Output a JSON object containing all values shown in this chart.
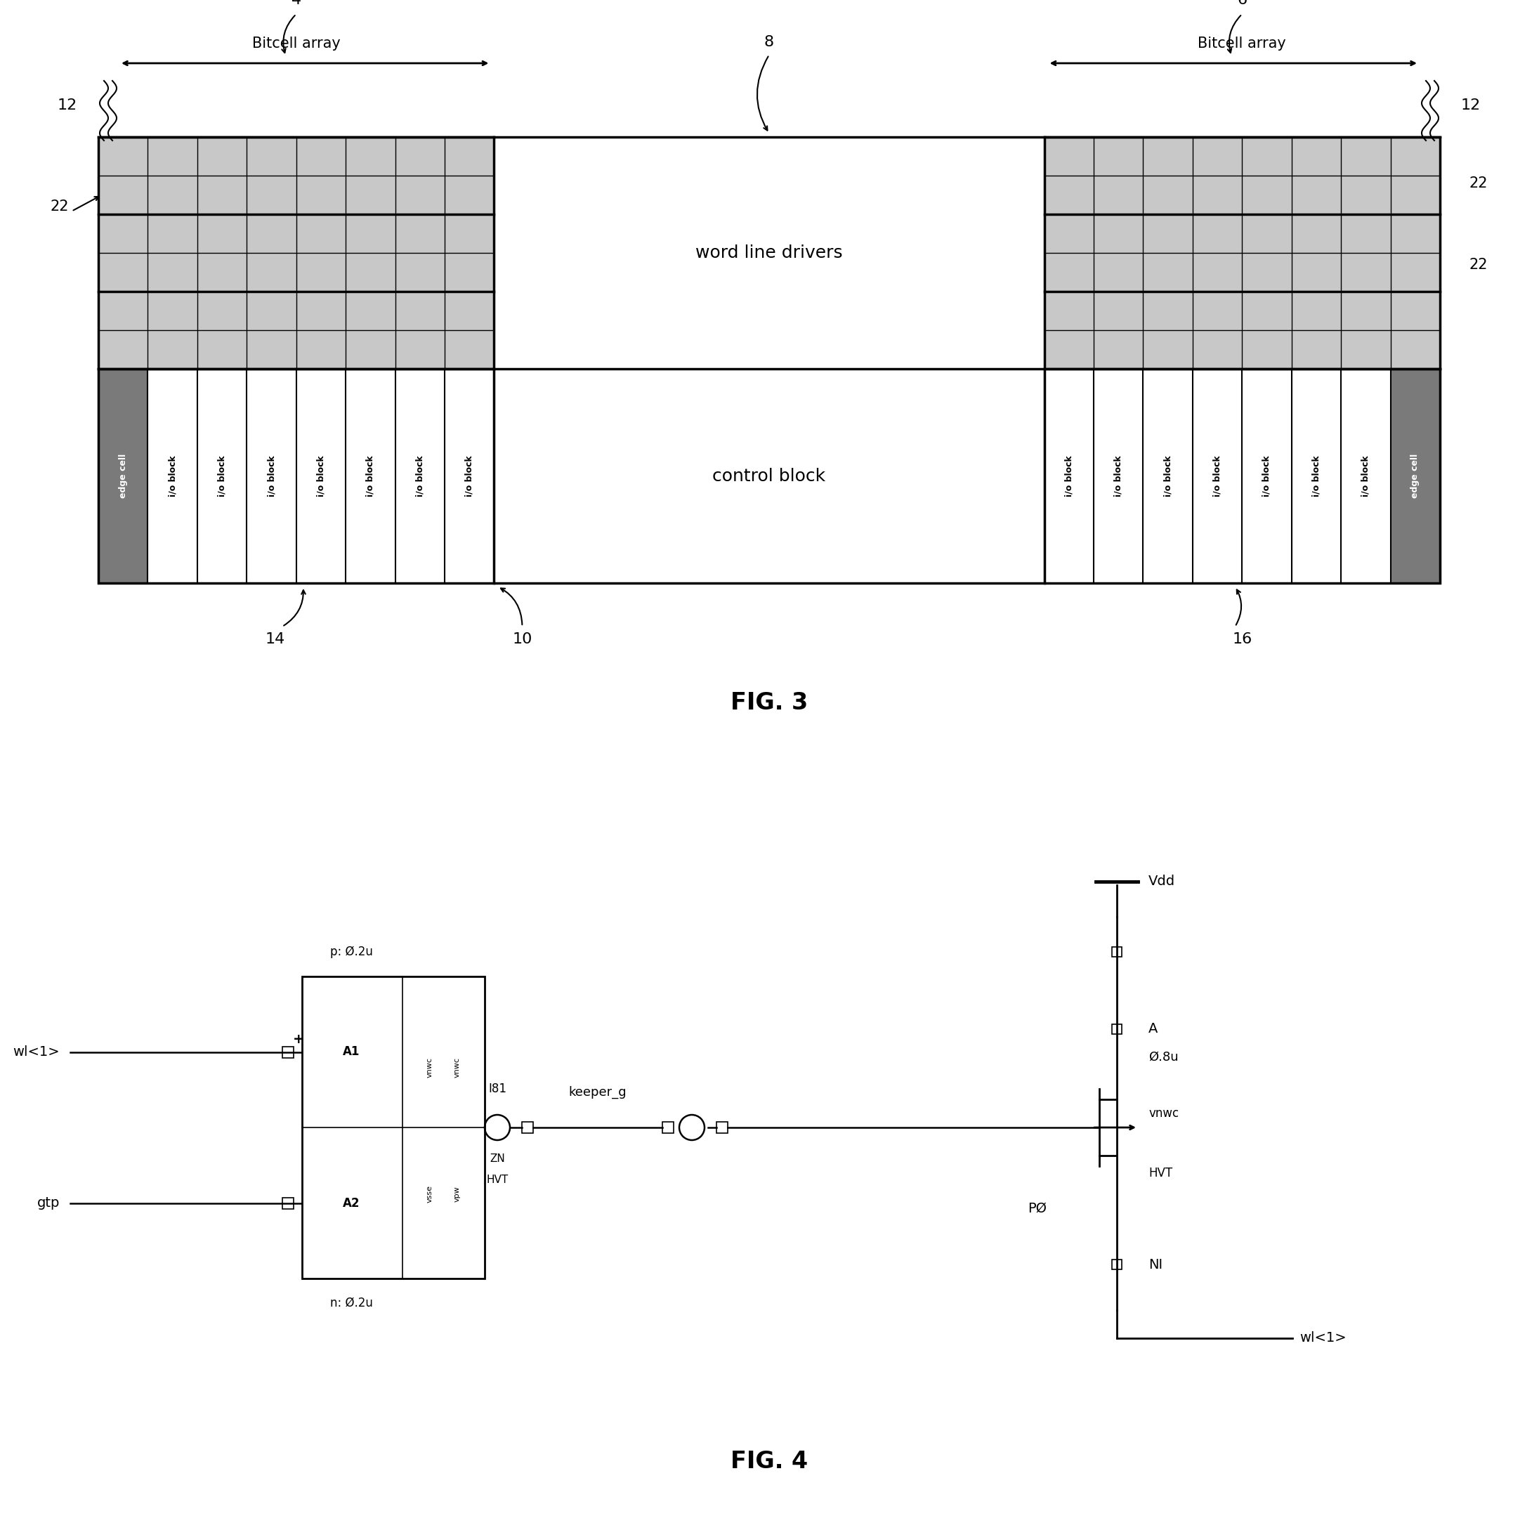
{
  "fig3": {
    "title": "FIG. 3",
    "word_line_drivers_text": "word line drivers",
    "control_block_text": "control block",
    "label_4": "4",
    "label_6": "6",
    "label_8": "8",
    "label_10": "10",
    "label_12": "12",
    "label_14": "14",
    "label_16": "16",
    "label_22": "22",
    "bitcell_array_text": "Bitcell array",
    "left_io_labels": [
      "edge cell",
      "i/o block",
      "i/o block",
      "i/o block",
      "i/o block",
      "i/o block",
      "i/o block",
      "i/o block"
    ],
    "right_io_labels": [
      "i/o block",
      "i/o block",
      "i/o block",
      "i/o block",
      "i/o block",
      "i/o block",
      "i/o block",
      "edge cell"
    ]
  },
  "fig4": {
    "title": "FIG. 4",
    "labels": {
      "p_label": "p: Ø.2u",
      "n_label": "n: Ø.2u",
      "A1": "A1",
      "A2": "A2",
      "vnwc1": "vnwc",
      "vnwc2": "vnwc",
      "vsse": "vsse",
      "vpw": "vpw",
      "I81": "I81",
      "ZN": "ZN",
      "HVT_gate": "HVT",
      "keeper_g": "keeper_g",
      "Vdd": "Vdd",
      "A_label": "A",
      "size_08u": "Ø.8u",
      "vnwc_right": "vnwc",
      "HVT_right": "HVT",
      "P0": "PØ",
      "NI": "NI",
      "wl1_in": "wl<1>",
      "gtp": "gtp",
      "wl1_out": "wl<1>"
    }
  },
  "bg_color": "#ffffff",
  "line_color": "#000000"
}
